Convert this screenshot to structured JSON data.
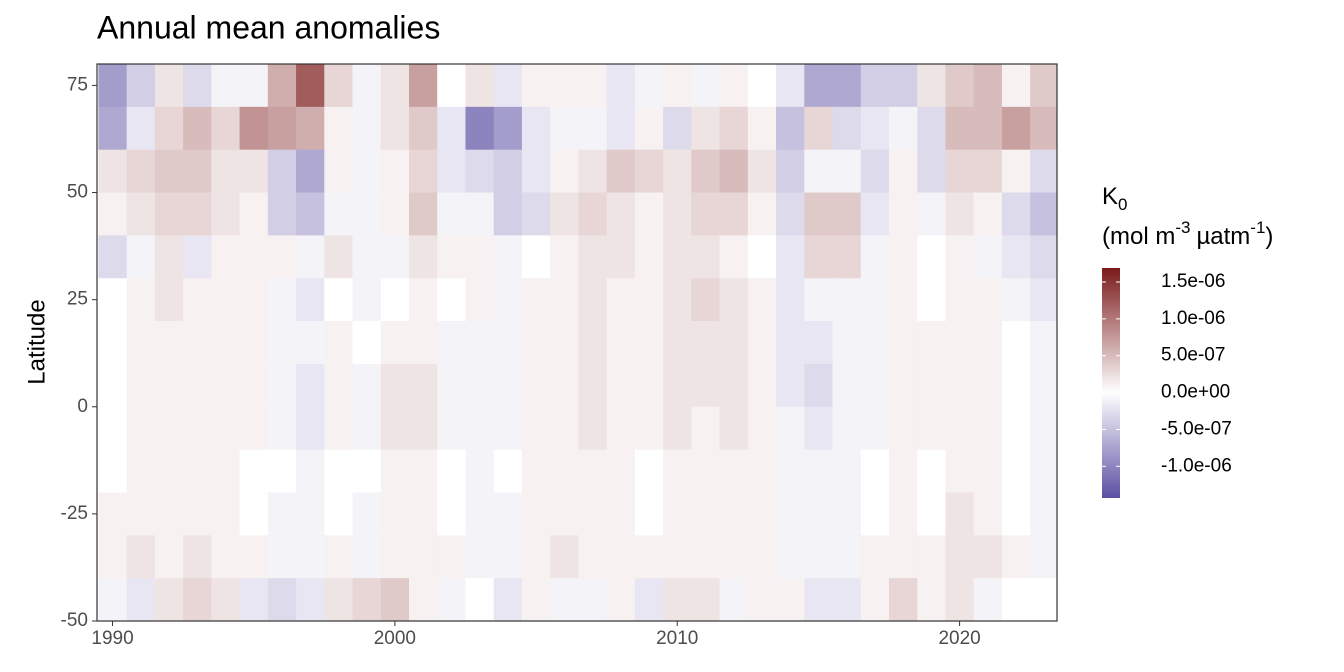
{
  "chart_data": {
    "type": "heatmap",
    "title": "Annual mean anomalies",
    "y_label": "Latitude",
    "x": [
      1990,
      1991,
      1992,
      1993,
      1994,
      1995,
      1996,
      1997,
      1998,
      1999,
      2000,
      2001,
      2002,
      2003,
      2004,
      2005,
      2006,
      2007,
      2008,
      2009,
      2010,
      2011,
      2012,
      2013,
      2014,
      2015,
      2016,
      2017,
      2018,
      2019,
      2020,
      2021,
      2022,
      2023
    ],
    "y": [
      75,
      65,
      55,
      45,
      35,
      25,
      15,
      5,
      -5,
      -15,
      -25,
      -35,
      -45
    ],
    "z": [
      [
        -8e-07,
        -4e-07,
        2e-07,
        -3e-07,
        -1e-07,
        -1e-07,
        6e-07,
        1.2e-06,
        3e-07,
        -1e-07,
        2e-07,
        7e-07,
        0,
        2e-07,
        -2e-07,
        1e-07,
        1e-07,
        1e-07,
        -2e-07,
        -1e-07,
        1e-07,
        -1e-07,
        1e-07,
        0,
        -2e-07,
        -7e-07,
        -7e-07,
        -4e-07,
        -4e-07,
        2e-07,
        4e-07,
        5e-07,
        1e-07,
        4e-07
      ],
      [
        -7e-07,
        -2e-07,
        3e-07,
        5e-07,
        3e-07,
        8e-07,
        7e-07,
        6e-07,
        1e-07,
        -1e-07,
        2e-07,
        4e-07,
        -2e-07,
        -1e-06,
        -8e-07,
        -2e-07,
        -1e-07,
        -1e-07,
        -2e-07,
        1e-07,
        -3e-07,
        2e-07,
        3e-07,
        1e-07,
        -5e-07,
        3e-07,
        -3e-07,
        -2e-07,
        -1e-07,
        -3e-07,
        5e-07,
        5e-07,
        7e-07,
        5e-07
      ],
      [
        2e-07,
        3e-07,
        4e-07,
        4e-07,
        2e-07,
        2e-07,
        -4e-07,
        -7e-07,
        1e-07,
        -1e-07,
        1e-07,
        3e-07,
        -2e-07,
        -3e-07,
        -4e-07,
        -2e-07,
        1e-07,
        2e-07,
        4e-07,
        3e-07,
        2e-07,
        4e-07,
        5e-07,
        2e-07,
        -4e-07,
        -1e-07,
        -1e-07,
        -3e-07,
        1e-07,
        -3e-07,
        3e-07,
        3e-07,
        1e-07,
        -3e-07
      ],
      [
        1e-07,
        2e-07,
        3e-07,
        3e-07,
        2e-07,
        1e-07,
        -4e-07,
        -5e-07,
        -1e-07,
        -1e-07,
        1e-07,
        4e-07,
        -1e-07,
        -1e-07,
        -4e-07,
        -3e-07,
        2e-07,
        3e-07,
        2e-07,
        1e-07,
        2e-07,
        3e-07,
        3e-07,
        1e-07,
        -3e-07,
        4e-07,
        4e-07,
        -2e-07,
        1e-07,
        -1e-07,
        2e-07,
        1e-07,
        -3e-07,
        -5e-07
      ],
      [
        -3e-07,
        -1e-07,
        2e-07,
        -2e-07,
        1e-07,
        1e-07,
        1e-07,
        -1e-07,
        2e-07,
        -1e-07,
        -1e-07,
        2e-07,
        1e-07,
        1e-07,
        -1e-07,
        0,
        1e-07,
        2e-07,
        2e-07,
        1e-07,
        2e-07,
        2e-07,
        1e-07,
        0,
        -2e-07,
        3e-07,
        3e-07,
        -1e-07,
        1e-07,
        0,
        1e-07,
        -1e-07,
        -2e-07,
        -3e-07
      ],
      [
        0,
        1e-07,
        2e-07,
        1e-07,
        1e-07,
        1e-07,
        -1e-07,
        -2e-07,
        0,
        -1e-07,
        0,
        1e-07,
        0,
        1e-07,
        -1e-07,
        1e-07,
        1e-07,
        2e-07,
        1e-07,
        1e-07,
        2e-07,
        3e-07,
        2e-07,
        1e-07,
        -2e-07,
        -1e-07,
        -1e-07,
        -1e-07,
        1e-07,
        0,
        1e-07,
        1e-07,
        -1e-07,
        -2e-07
      ],
      [
        0,
        1e-07,
        1e-07,
        1e-07,
        1e-07,
        1e-07,
        -1e-07,
        -1e-07,
        1e-07,
        0,
        1e-07,
        1e-07,
        -1e-07,
        -1e-07,
        -1e-07,
        1e-07,
        1e-07,
        2e-07,
        1e-07,
        1e-07,
        2e-07,
        2e-07,
        2e-07,
        1e-07,
        -2e-07,
        -2e-07,
        -1e-07,
        -1e-07,
        1e-07,
        1e-07,
        1e-07,
        1e-07,
        0,
        -1e-07
      ],
      [
        0,
        1e-07,
        1e-07,
        1e-07,
        1e-07,
        1e-07,
        -1e-07,
        -2e-07,
        1e-07,
        -1e-07,
        2e-07,
        2e-07,
        -1e-07,
        -1e-07,
        -1e-07,
        1e-07,
        1e-07,
        2e-07,
        1e-07,
        1e-07,
        2e-07,
        2e-07,
        2e-07,
        1e-07,
        -2e-07,
        -3e-07,
        -1e-07,
        -1e-07,
        1e-07,
        1e-07,
        1e-07,
        1e-07,
        0,
        -1e-07
      ],
      [
        0,
        1e-07,
        1e-07,
        1e-07,
        1e-07,
        1e-07,
        -1e-07,
        -2e-07,
        1e-07,
        -1e-07,
        2e-07,
        2e-07,
        -1e-07,
        -1e-07,
        -1e-07,
        1e-07,
        1e-07,
        2e-07,
        1e-07,
        1e-07,
        2e-07,
        1e-07,
        2e-07,
        1e-07,
        -1e-07,
        -2e-07,
        -1e-07,
        -1e-07,
        1e-07,
        1e-07,
        1e-07,
        1e-07,
        0,
        -1e-07
      ],
      [
        0,
        1e-07,
        1e-07,
        1e-07,
        1e-07,
        0,
        0,
        -1e-07,
        0,
        0,
        1e-07,
        1e-07,
        0,
        -1e-07,
        0,
        1e-07,
        1e-07,
        1e-07,
        1e-07,
        0,
        1e-07,
        1e-07,
        1e-07,
        1e-07,
        -1e-07,
        -1e-07,
        -1e-07,
        0,
        1e-07,
        0,
        1e-07,
        1e-07,
        0,
        -1e-07
      ],
      [
        1e-07,
        1e-07,
        1e-07,
        1e-07,
        1e-07,
        0,
        -1e-07,
        -1e-07,
        0,
        -1e-07,
        1e-07,
        1e-07,
        0,
        -1e-07,
        -1e-07,
        1e-07,
        1e-07,
        1e-07,
        1e-07,
        0,
        1e-07,
        1e-07,
        1e-07,
        1e-07,
        -1e-07,
        -1e-07,
        -1e-07,
        0,
        1e-07,
        0,
        2e-07,
        1e-07,
        0,
        -1e-07
      ],
      [
        1e-07,
        2e-07,
        1e-07,
        2e-07,
        1e-07,
        1e-07,
        -1e-07,
        -1e-07,
        1e-07,
        -1e-07,
        1e-07,
        1e-07,
        1e-07,
        -1e-07,
        -1e-07,
        1e-07,
        2e-07,
        1e-07,
        1e-07,
        1e-07,
        1e-07,
        1e-07,
        1e-07,
        1e-07,
        -1e-07,
        -1e-07,
        -1e-07,
        1e-07,
        1e-07,
        1e-07,
        2e-07,
        2e-07,
        1e-07,
        -1e-07
      ],
      [
        -1e-07,
        -2e-07,
        2e-07,
        3e-07,
        2e-07,
        -2e-07,
        -3e-07,
        -2e-07,
        2e-07,
        3e-07,
        4e-07,
        1e-07,
        -1e-07,
        0,
        -2e-07,
        1e-07,
        -1e-07,
        -1e-07,
        1e-07,
        -2e-07,
        2e-07,
        2e-07,
        -1e-07,
        1e-07,
        1e-07,
        -2e-07,
        -2e-07,
        1e-07,
        3e-07,
        1e-07,
        2e-07,
        -1e-07,
        0,
        0
      ]
    ],
    "xlim": [
      1989.45,
      2023.45
    ],
    "ylim": [
      -50,
      80
    ],
    "xticks": [
      1990,
      2000,
      2010,
      2020
    ],
    "yticks": [
      -50,
      -25,
      0,
      25,
      50,
      75
    ],
    "legend": {
      "title": "K",
      "title_sub": "0",
      "units": [
        "(mol m",
        "-3",
        "µatm",
        "-1",
        ")"
      ],
      "clim": [
        -1.43e-06,
        1.69e-06
      ],
      "colors": [
        "#5b4fa2",
        "#ffffff",
        "#7b1a1a"
      ],
      "ticks": [
        {
          "value": 1.5e-06,
          "label": "1.5e-06"
        },
        {
          "value": 1e-06,
          "label": "1.0e-06"
        },
        {
          "value": 5e-07,
          "label": "5.0e-07"
        },
        {
          "value": 0,
          "label": "0.0e+00"
        },
        {
          "value": -5e-07,
          "label": "-5.0e-07"
        },
        {
          "value": -1e-06,
          "label": "-1.0e-06"
        }
      ]
    }
  }
}
